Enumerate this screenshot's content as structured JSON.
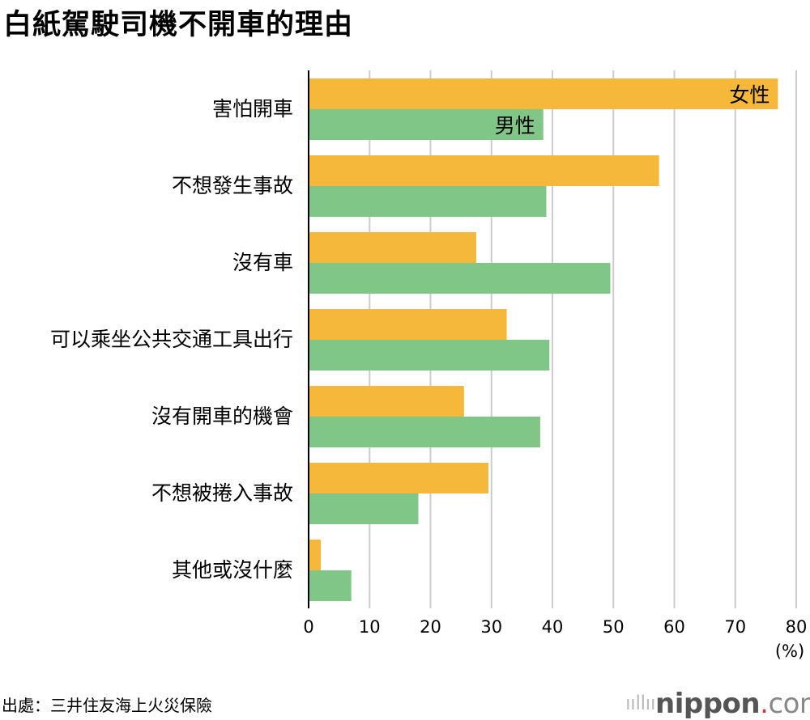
{
  "title": "白紙駕駛司機不開車的理由",
  "source": "出處：三井住友海上火災保險",
  "logo": {
    "name": "nippon",
    "dot": ".",
    "tld": "com"
  },
  "colors": {
    "female": "#F5B83B",
    "male": "#80C687",
    "grid": "#CCCCCC",
    "axis": "#000000"
  },
  "chart_data": {
    "type": "bar",
    "orientation": "horizontal",
    "categories": [
      "害怕開車",
      "不想發生事故",
      "沒有車",
      "可以乘坐公共交通工具出行",
      "沒有開車的機會",
      "不想被捲入事故",
      "其他或沒什麼"
    ],
    "series": [
      {
        "name": "女性",
        "values": [
          77.0,
          57.5,
          27.5,
          32.5,
          25.5,
          29.5,
          2.0
        ]
      },
      {
        "name": "男性",
        "values": [
          38.5,
          39.0,
          49.5,
          39.5,
          38.0,
          18.0,
          7.0
        ]
      }
    ],
    "xlim": [
      0,
      80
    ],
    "xticks": [
      "0",
      "10",
      "20",
      "30",
      "40",
      "50",
      "60",
      "70",
      "80"
    ],
    "xunit": "(%)",
    "grid": true,
    "legend": "inline labels on first bars"
  }
}
